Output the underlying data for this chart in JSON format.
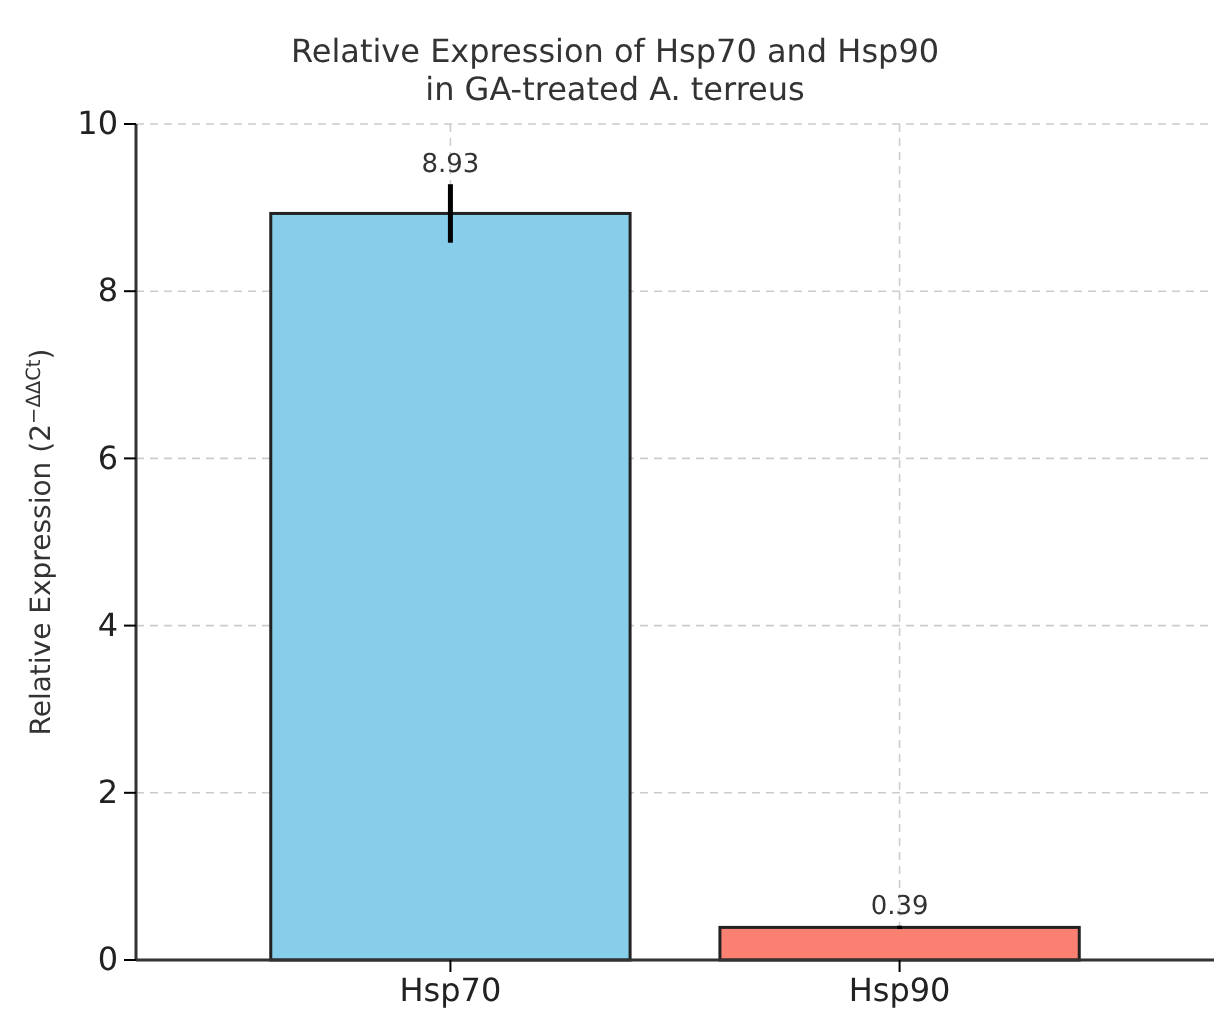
{
  "chart_data": {
    "type": "bar",
    "title": "Relative Expression of Hsp70 and Hsp90\nin GA-treated A. terreus",
    "ylabel": "Relative Expression (2$^{−ΔΔCt}$)",
    "categories": [
      "Hsp70",
      "Hsp90"
    ],
    "values": [
      8.93,
      0.39
    ],
    "colors": [
      "#87ceeb",
      "#fa8072"
    ],
    "errors": [
      0.35,
      0.02
    ],
    "ylim": [
      0,
      10
    ],
    "yticks": [
      0,
      2,
      4,
      6,
      8,
      10
    ],
    "grid": true,
    "data_labels": true
  }
}
